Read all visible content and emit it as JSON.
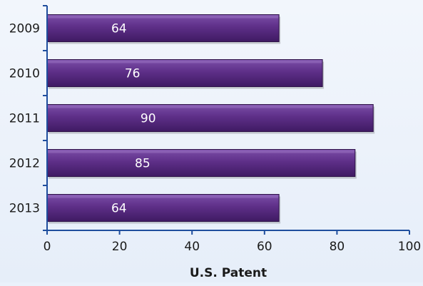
{
  "chart_data": {
    "type": "bar",
    "orientation": "horizontal",
    "categories": [
      "2009",
      "2010",
      "2011",
      "2012",
      "2013"
    ],
    "values": [
      64,
      76,
      90,
      85,
      64
    ],
    "data_labels": [
      "64",
      "76",
      "90",
      "85",
      "64"
    ],
    "title": "",
    "xlabel": "U.S. Patent",
    "ylabel": "",
    "xlim": [
      0,
      100
    ],
    "x_ticks": [
      0,
      20,
      40,
      60,
      80,
      100
    ],
    "x_tick_labels": [
      "0",
      "20",
      "40",
      "60",
      "80",
      "100"
    ],
    "grid": false,
    "legend": "none",
    "colors": {
      "bar_fill": "#5a2d82",
      "bar_highlight": "#7a4aa6",
      "bar_edge": "#2f1348",
      "axis": "#1f4e9e",
      "data_label": "#ffffff"
    }
  }
}
